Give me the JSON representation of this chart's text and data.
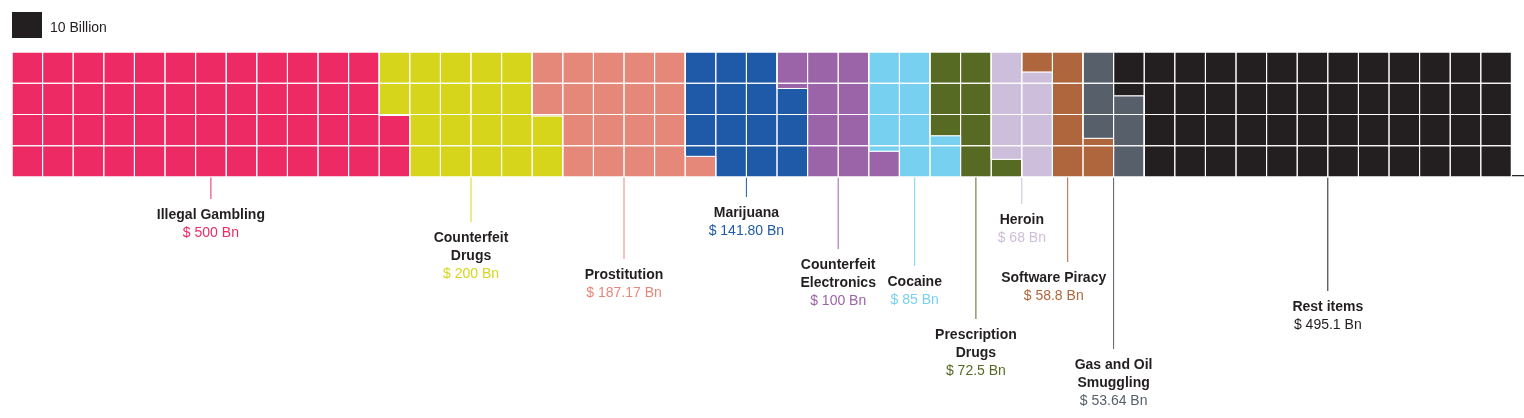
{
  "chart_data": {
    "type": "other",
    "categories": [
      "Illegal Gambling",
      "Counterfeit Drugs",
      "Prostitution",
      "Marijuana",
      "Counterfeit Electronics",
      "Cocaine",
      "Prescription Drugs",
      "Heroin",
      "Software Piracy",
      "Gas and Oil Smuggling",
      "Rest items"
    ],
    "values": [
      500,
      200,
      187.17,
      141.8,
      100,
      85,
      72.5,
      68,
      58.8,
      53.64,
      495.1
    ],
    "value_labels": [
      "$ 500 Bn",
      "$ 200 Bn",
      "$ 187.17 Bn",
      "$ 141.80 Bn",
      "$ 100 Bn",
      "$ 85 Bn",
      "$ 72.5 Bn",
      "$ 68 Bn",
      "$ 58.8 Bn",
      "$ 53.64 Bn",
      "$ 495.1 Bn"
    ],
    "colors": [
      "#ee2a64",
      "#d6d51c",
      "#e5887a",
      "#1f5aa8",
      "#9b63a8",
      "#77d0ef",
      "#566a23",
      "#cdbfdc",
      "#b0663c",
      "#575f6a",
      "#231f20"
    ],
    "legend_title": "10 Billion"
  }
}
